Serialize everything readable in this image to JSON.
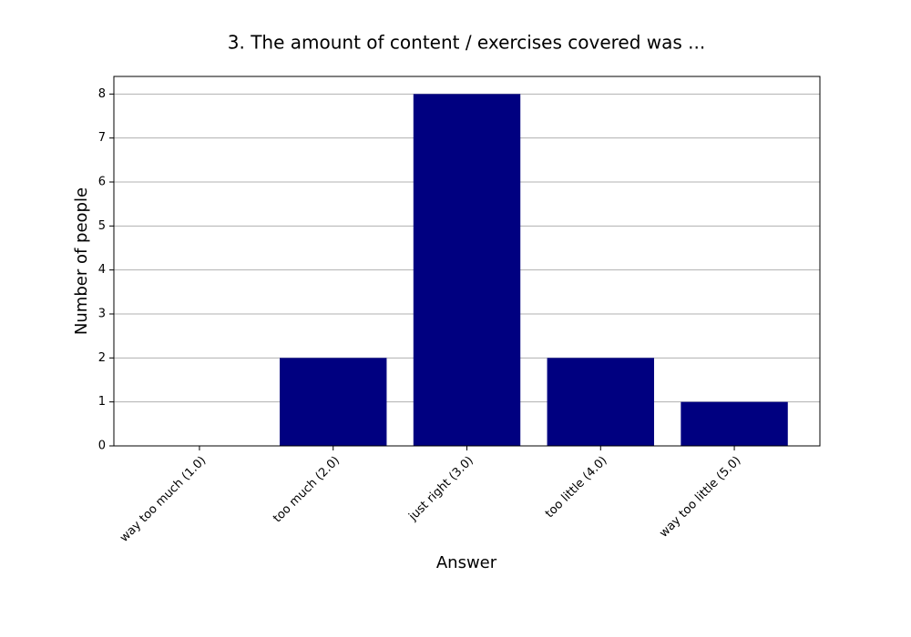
{
  "chart_data": {
    "type": "bar",
    "title": "3. The amount of content / exercises covered was ...",
    "x_label": "Answer",
    "y_label": "Number of people",
    "categories": [
      "way too much (1.0)",
      "too much (2.0)",
      "just right (3.0)",
      "too little (4.0)",
      "way too little (5.0)"
    ],
    "values": [
      0,
      2,
      8,
      2,
      1
    ],
    "color": "#000080",
    "ylim": [
      0,
      8.4
    ],
    "yticks": [
      0,
      1,
      2,
      3,
      4,
      5,
      6,
      7,
      8
    ],
    "grid": true
  }
}
